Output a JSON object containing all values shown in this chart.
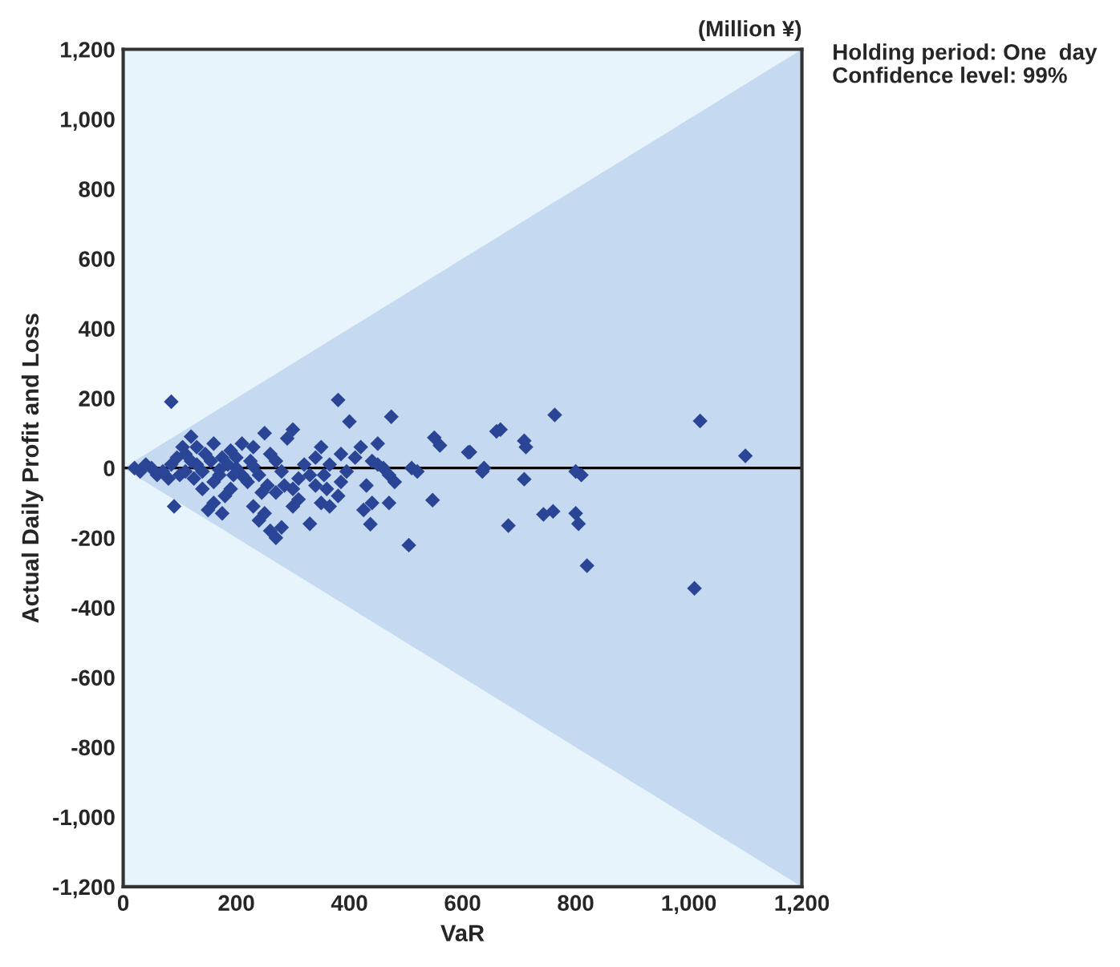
{
  "chart_data": {
    "type": "scatter",
    "xlabel": "VaR",
    "ylabel": "Actual Daily Profit and Loss",
    "annotations": [
      "(Million ¥)",
      "Holding period: One  day",
      "Confidence level: 99%"
    ],
    "xlim": [
      0,
      1200
    ],
    "ylim": [
      -1200,
      1200
    ],
    "xticks": [
      0,
      200,
      400,
      600,
      800,
      {
        "value": 1000,
        "label": "1,000"
      },
      {
        "value": 1200,
        "label": "1,200"
      }
    ],
    "yticks": [
      {
        "value": -1200,
        "label": "-1,200"
      },
      {
        "value": -1000,
        "label": "-1,000"
      },
      -800,
      -600,
      -400,
      -200,
      0,
      200,
      400,
      600,
      800,
      {
        "value": 1000,
        "label": "1,000"
      },
      {
        "value": 1200,
        "label": "1,200"
      }
    ],
    "grid": false,
    "series": [
      {
        "type": "line",
        "color": "#000000",
        "x": [
          0,
          1200
        ],
        "values": [
          0,
          0
        ],
        "lower": [
          0,
          -1200
        ],
        "upper": [
          0,
          1200
        ]
      },
      {
        "color": "#2a4596",
        "marker": "diamond",
        "x": [
          85,
          380,
          474,
          763,
          1020,
          1100,
          1010,
          820,
          505,
          800,
          805,
          743,
          760,
          681,
          709,
          712,
          667,
          660,
          613,
          610,
          800,
          810,
          709,
          638,
          635,
          550,
          560,
          510,
          520,
          547,
          480,
          470,
          430,
          440,
          450,
          420,
          437,
          380,
          400,
          410,
          385,
          395,
          360,
          350,
          340,
          330,
          320,
          310,
          300,
          290,
          280,
          270,
          260,
          250,
          240,
          230,
          220,
          210,
          200,
          190,
          180,
          170,
          160,
          150,
          140,
          130,
          120,
          110,
          100,
          90,
          80,
          70,
          60,
          50,
          40,
          30,
          20,
          250,
          260,
          230,
          210,
          190,
          175,
          160,
          145,
          130,
          120,
          105,
          95,
          85,
          140,
          155,
          170,
          185,
          200,
          215,
          225,
          240,
          255,
          270,
          285,
          300,
          310,
          280,
          300,
          340,
          355,
          365,
          440,
          450,
          460,
          470,
          330,
          270,
          160,
          110,
          125,
          195,
          230,
          245,
          175,
          350,
          365,
          425,
          385
        ],
        "values": [
          190,
          195,
          147,
          152,
          135,
          35,
          -345,
          -280,
          -221,
          -130,
          -160,
          -133,
          -124,
          -165,
          78,
          60,
          110,
          105,
          46,
          45,
          -10,
          -20,
          -32,
          0,
          -10,
          87,
          65,
          0,
          -10,
          -92,
          -40,
          -100,
          -50,
          20,
          10,
          60,
          -161,
          -80,
          133,
          30,
          40,
          -10,
          -60,
          -100,
          -50,
          -20,
          10,
          -30,
          110,
          85,
          -10,
          -70,
          -180,
          -130,
          -150,
          -110,
          -40,
          -20,
          0,
          -60,
          -80,
          -20,
          -40,
          -120,
          -60,
          10,
          20,
          40,
          -20,
          -110,
          -30,
          -10,
          -20,
          0,
          10,
          -10,
          0,
          100,
          40,
          60,
          70,
          50,
          30,
          70,
          40,
          60,
          90,
          60,
          30,
          10,
          -10,
          20,
          -5,
          10,
          30,
          -30,
          20,
          -20,
          -50,
          20,
          -50,
          -60,
          -90,
          -170,
          -110,
          30,
          -20,
          10,
          -100,
          70,
          0,
          -20,
          -160,
          -200,
          -100,
          -10,
          -30,
          -20,
          5,
          -70,
          -130,
          60,
          -110,
          -120,
          -40
        ]
      }
    ]
  }
}
